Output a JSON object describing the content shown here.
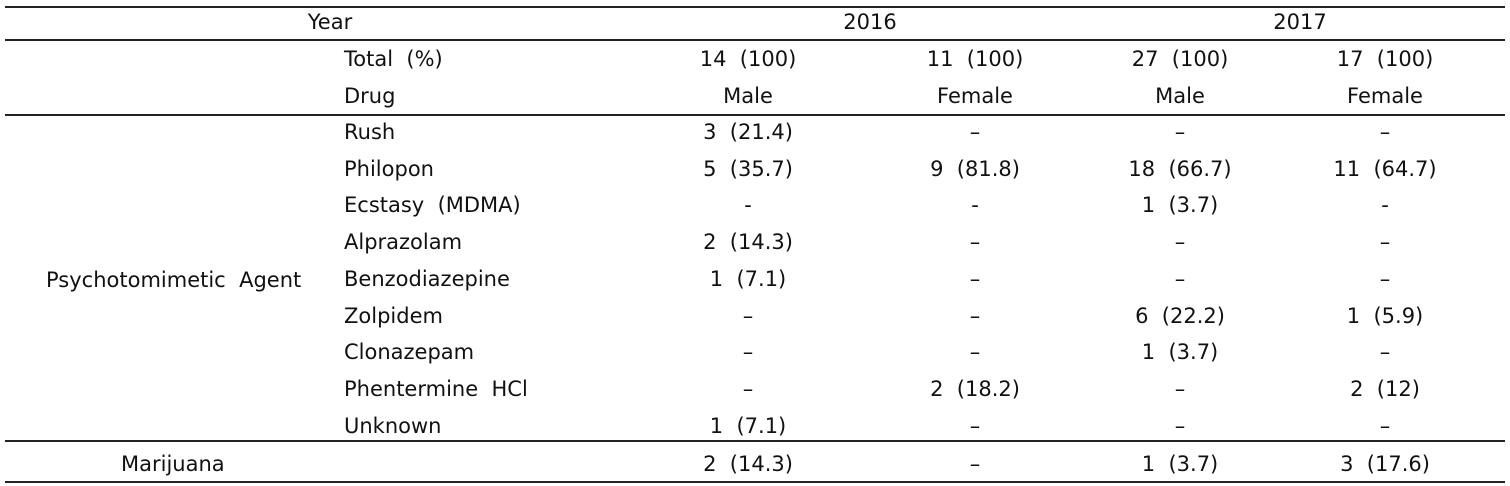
{
  "header": {
    "year_label": "Year",
    "years": [
      "2016",
      "2017"
    ],
    "total_label": "Total  (%)",
    "totals": [
      "14  (100)",
      "11  (100)",
      "27  (100)",
      "17  (100)"
    ],
    "drug_label": "Drug",
    "sexes": [
      "Male",
      "Female",
      "Male",
      "Female"
    ]
  },
  "groups": [
    {
      "name": "Psychotomimetic  Agent",
      "rows": [
        {
          "drug": "Rush",
          "values": [
            "3  (21.4)",
            "–",
            "–",
            "–"
          ]
        },
        {
          "drug": "Philopon",
          "values": [
            "5  (35.7)",
            "9  (81.8)",
            "18  (66.7)",
            "11  (64.7)"
          ]
        },
        {
          "drug": "Ecstasy  (MDMA)",
          "values": [
            "-",
            "-",
            "1  (3.7)",
            "-"
          ]
        },
        {
          "drug": "Alprazolam",
          "values": [
            "2  (14.3)",
            "–",
            "–",
            "–"
          ]
        },
        {
          "drug": "Benzodiazepine",
          "values": [
            "1  (7.1)",
            "–",
            "–",
            "–"
          ]
        },
        {
          "drug": "Zolpidem",
          "values": [
            "–",
            "–",
            "6  (22.2)",
            "1  (5.9)"
          ]
        },
        {
          "drug": "Clonazepam",
          "values": [
            "–",
            "–",
            "1  (3.7)",
            "–"
          ]
        },
        {
          "drug": "Phentermine  HCl",
          "values": [
            "–",
            "2  (18.2)",
            "–",
            "2  (12)"
          ]
        },
        {
          "drug": "Unknown",
          "values": [
            "1  (7.1)",
            "–",
            "–",
            "–"
          ]
        }
      ]
    },
    {
      "name": "Marijuana",
      "rows": [
        {
          "drug": "",
          "values": [
            "2  (14.3)",
            "–",
            "1  (3.7)",
            "3  (17.6)"
          ]
        }
      ]
    }
  ]
}
